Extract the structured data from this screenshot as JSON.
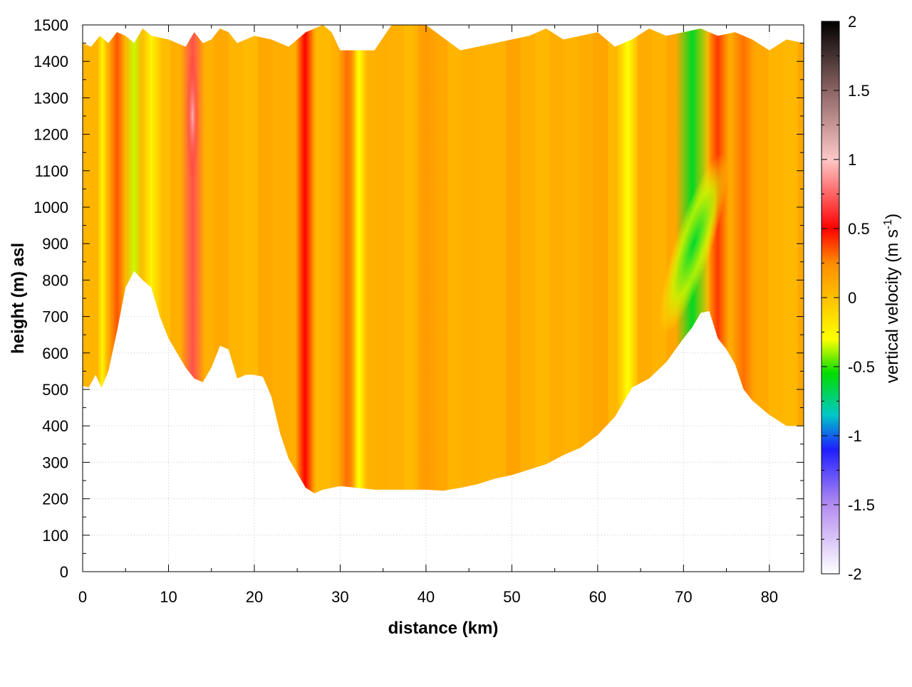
{
  "chart_data": {
    "type": "heatmap",
    "title": "",
    "xlabel": "distance (km)",
    "ylabel": "height (m) asl",
    "xlim": [
      0,
      84
    ],
    "ylim": [
      0,
      1500
    ],
    "x_ticks": [
      "0",
      "10",
      "20",
      "30",
      "40",
      "50",
      "60",
      "70",
      "80"
    ],
    "y_ticks": [
      "0",
      "100",
      "200",
      "300",
      "400",
      "500",
      "600",
      "700",
      "800",
      "900",
      "1000",
      "1100",
      "1200",
      "1300",
      "1400",
      "1500"
    ],
    "grid": true,
    "colorbar": {
      "label_main": "vertical velocity (m s",
      "label_exp": "-1",
      "label_close": ")",
      "range": [
        -2,
        2
      ],
      "ticks": [
        "2",
        "1.5",
        "1",
        "0.5",
        "0",
        "-0.5",
        "-1",
        "-1.5",
        "-2"
      ],
      "colors": [
        {
          "v": -2.0,
          "c": "#ffffff"
        },
        {
          "v": -1.5,
          "c": "#b48cf0"
        },
        {
          "v": -1.1,
          "c": "#1e1eff"
        },
        {
          "v": -0.85,
          "c": "#00c8c8"
        },
        {
          "v": -0.55,
          "c": "#00dd00"
        },
        {
          "v": -0.3,
          "c": "#ffff00"
        },
        {
          "v": 0.0,
          "c": "#ffc000"
        },
        {
          "v": 0.25,
          "c": "#ff8c00"
        },
        {
          "v": 0.5,
          "c": "#ff0000"
        },
        {
          "v": 1.0,
          "c": "#ffc8c8"
        },
        {
          "v": 1.5,
          "c": "#8c6464"
        },
        {
          "v": 2.0,
          "c": "#000000"
        }
      ]
    },
    "terrain": {
      "x_km": [
        0,
        0.7,
        1.5,
        2.2,
        3,
        4,
        5,
        6,
        7,
        8,
        9,
        10,
        11,
        12,
        13,
        14,
        15,
        16,
        17,
        18,
        19,
        20,
        21,
        22,
        23,
        24,
        25,
        26,
        27,
        28,
        30,
        32,
        34,
        36,
        38,
        40,
        42,
        44,
        46,
        48,
        50,
        52,
        54,
        56,
        58,
        60,
        62,
        64,
        66,
        68,
        70,
        71,
        72,
        73,
        74,
        75,
        76,
        77,
        78,
        80,
        82,
        84
      ],
      "height_m": [
        510,
        505,
        540,
        505,
        550,
        660,
        780,
        825,
        800,
        780,
        700,
        640,
        600,
        560,
        530,
        520,
        560,
        620,
        610,
        530,
        540,
        540,
        535,
        480,
        380,
        310,
        270,
        230,
        215,
        225,
        235,
        230,
        225,
        225,
        225,
        225,
        222,
        230,
        240,
        255,
        265,
        280,
        295,
        320,
        340,
        375,
        425,
        505,
        530,
        575,
        640,
        670,
        710,
        715,
        640,
        610,
        570,
        500,
        470,
        430,
        400,
        400
      ]
    },
    "top": {
      "x_km": [
        0,
        1,
        2,
        3,
        4,
        5,
        6,
        7,
        8,
        10,
        12,
        13,
        14,
        15,
        16,
        17,
        18,
        20,
        22,
        24,
        26,
        27,
        28,
        29,
        30,
        32,
        34,
        36,
        40,
        44,
        46,
        48,
        50,
        52,
        54,
        56,
        58,
        60,
        62,
        64,
        66,
        68,
        70,
        72,
        74,
        76,
        78,
        80,
        82,
        84
      ],
      "height_m": [
        1450,
        1440,
        1470,
        1450,
        1480,
        1470,
        1450,
        1490,
        1470,
        1460,
        1440,
        1480,
        1450,
        1460,
        1490,
        1480,
        1450,
        1470,
        1460,
        1440,
        1480,
        1490,
        1500,
        1480,
        1430,
        1430,
        1430,
        1500,
        1500,
        1430,
        1440,
        1450,
        1460,
        1470,
        1490,
        1460,
        1470,
        1480,
        1440,
        1460,
        1490,
        1470,
        1480,
        1490,
        1470,
        1480,
        1460,
        1430,
        1460,
        1450
      ]
    },
    "updraft_bands": [
      {
        "center_km": 4.0,
        "width_km": 0.6,
        "w": 0.35
      },
      {
        "center_km": 12.8,
        "width_km": 0.9,
        "w": 0.7
      },
      {
        "center_km": 25.9,
        "width_km": 0.7,
        "w": 0.5
      },
      {
        "center_km": 30.8,
        "width_km": 0.7,
        "w": 0.3
      },
      {
        "center_km": 40.0,
        "width_km": 1.0,
        "w": 0.18
      },
      {
        "center_km": 74.0,
        "width_km": 0.8,
        "w": 0.4
      },
      {
        "center_km": 77.0,
        "width_km": 0.9,
        "w": 0.3
      }
    ],
    "downdraft_bands": [
      {
        "center_km": 2.3,
        "width_km": 0.4,
        "w": -0.25
      },
      {
        "center_km": 6.0,
        "width_km": 0.7,
        "w": -0.35
      },
      {
        "center_km": 8.0,
        "width_km": 0.8,
        "w": -0.25
      },
      {
        "center_km": 32.2,
        "width_km": 0.6,
        "w": -0.3
      },
      {
        "center_km": 63.5,
        "width_km": 0.8,
        "w": -0.3
      },
      {
        "center_km": 71.0,
        "width_km": 1.2,
        "w": -0.6
      }
    ]
  }
}
